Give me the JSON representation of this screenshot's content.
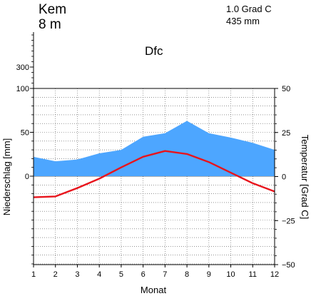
{
  "station": {
    "name": "Kem",
    "elevation": "8 m",
    "mean_temperature": "1.0 Grad C",
    "annual_precipitation": "435 mm",
    "climate_class": "Dfc"
  },
  "chart_data": {
    "type": "line",
    "xlabel": "Monat",
    "ylabel_left": "Niederschlag [mm]",
    "ylabel_right": "Temperatur [Grad C]",
    "categories": [
      1,
      2,
      3,
      4,
      5,
      6,
      7,
      8,
      9,
      10,
      11,
      12
    ],
    "series": [
      {
        "kind": "area",
        "axis": "left",
        "color": "#4da6ff",
        "values": [
          22,
          17,
          19,
          26,
          30,
          45,
          49,
          63,
          49,
          44,
          38,
          30
        ]
      },
      {
        "kind": "line",
        "axis": "right",
        "color": "#e8141c",
        "values": [
          -11.8,
          -11.3,
          -6.5,
          -1.2,
          5.2,
          11.2,
          14.5,
          12.8,
          8.2,
          2.2,
          -3.8,
          -8.5
        ]
      }
    ],
    "left_axis": {
      "ylim": [
        -100,
        300
      ],
      "ticks": [
        0,
        50,
        100,
        300
      ],
      "tick_labels": [
        "0",
        "50",
        "100",
        "300"
      ]
    },
    "right_axis": {
      "ylim": [
        -50,
        50
      ],
      "ticks": [
        -50,
        -25,
        0,
        25,
        50
      ],
      "tick_labels": [
        "−50",
        "−25",
        "0",
        "25",
        "50"
      ]
    },
    "grid": true
  }
}
